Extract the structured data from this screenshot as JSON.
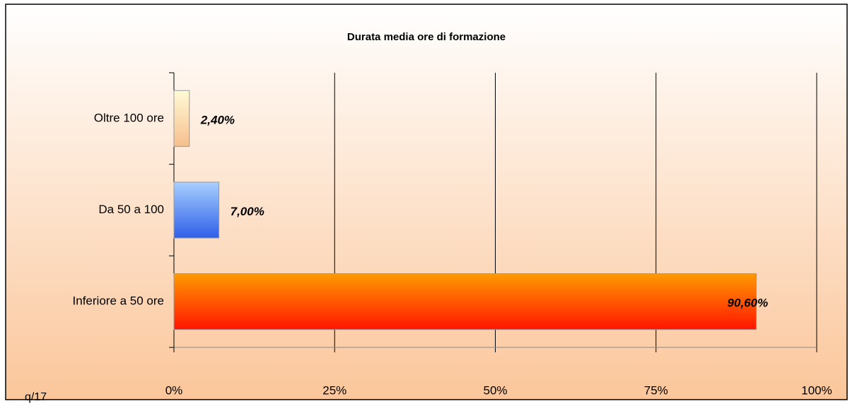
{
  "chart_data": {
    "type": "hbar",
    "title": "Durata media ore di formazione",
    "categories": [
      "Oltre 100 ore",
      "Da 50 a 100",
      "Inferiore a 50 ore"
    ],
    "values": [
      2.4,
      7,
      90.6
    ],
    "value_labels": [
      "2,40%",
      "7,00%",
      "90,60%"
    ],
    "colors": [
      [
        "#fffbd6",
        "#f6bf8e"
      ],
      [
        "#a8d0ff",
        "#2f5fe8"
      ],
      [
        "#ff9a00",
        "#ff1500"
      ]
    ],
    "xlim": [
      0,
      100
    ],
    "xticks": [
      {
        "value": 0,
        "label": "0%"
      },
      {
        "value": 25,
        "label": "25%"
      },
      {
        "value": 50,
        "label": "50%"
      },
      {
        "value": 75,
        "label": "75%"
      },
      {
        "value": 100,
        "label": "100%"
      }
    ],
    "grid": true,
    "annotation": "q/17"
  }
}
